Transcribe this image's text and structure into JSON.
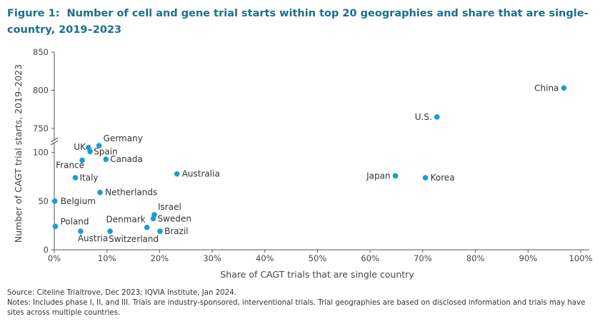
{
  "figure": {
    "label": "Figure 1:",
    "title": "Number of cell and gene trial starts within top 20 geographies and share that are single-country, 2019–2023"
  },
  "colors": {
    "title": "#1d6f8a",
    "point": "#1a9bd7",
    "axis": "#555555",
    "text": "#333333"
  },
  "chart_data": {
    "type": "scatter",
    "title": "Number of cell and gene trial starts within top 20 geographies and share that are single-country, 2019–2023",
    "xlabel": "Share of CAGT trials that are single country",
    "ylabel": "Number of CAGT trial starts, 2019–2023",
    "xlim": [
      0,
      100
    ],
    "x_ticks": [
      "0%",
      "10%",
      "20%",
      "30%",
      "40%",
      "50%",
      "60%",
      "70%",
      "80%",
      "90%",
      "100%"
    ],
    "y_ticks_lower": [
      "0",
      "50",
      "100"
    ],
    "y_ticks_upper": [
      "750",
      "800",
      "850"
    ],
    "y_axis_break": "between 100 and 750",
    "ylim_lower": [
      0,
      110
    ],
    "ylim_upper": [
      735,
      850
    ],
    "grid": false,
    "points": [
      {
        "label": "China",
        "x": 96.8,
        "y": 803
      },
      {
        "label": "U.S.",
        "x": 72.7,
        "y": 765
      },
      {
        "label": "Japan",
        "x": 64.8,
        "y": 76
      },
      {
        "label": "Korea",
        "x": 70.5,
        "y": 74
      },
      {
        "label": "Australia",
        "x": 23.3,
        "y": 78
      },
      {
        "label": "Germany",
        "x": 8.5,
        "y": 107
      },
      {
        "label": "UK",
        "x": 6.5,
        "y": 105
      },
      {
        "label": "Spain",
        "x": 6.8,
        "y": 101
      },
      {
        "label": "France",
        "x": 5.3,
        "y": 92
      },
      {
        "label": "Canada",
        "x": 9.8,
        "y": 93
      },
      {
        "label": "Italy",
        "x": 4.0,
        "y": 74
      },
      {
        "label": "Netherlands",
        "x": 8.7,
        "y": 59
      },
      {
        "label": "Belgium",
        "x": 0.1,
        "y": 50
      },
      {
        "label": "Israel",
        "x": 19.0,
        "y": 36
      },
      {
        "label": "Sweden",
        "x": 18.8,
        "y": 32
      },
      {
        "label": "Denmark",
        "x": 17.6,
        "y": 23
      },
      {
        "label": "Brazil",
        "x": 20.1,
        "y": 19
      },
      {
        "label": "Poland",
        "x": 0.2,
        "y": 24
      },
      {
        "label": "Austria",
        "x": 5.0,
        "y": 19
      },
      {
        "label": "Switzerland",
        "x": 10.6,
        "y": 19
      }
    ]
  },
  "footer": {
    "source": "Source: Citeline Trialtrove, Dec 2023; IQVIA Institute, Jan 2024.",
    "notes": "Notes: Includes phase I, II, and III. Trials are industry-sponsored, interventional trials. Trial geographies are based on disclosed information and trials may have sites across multiple countries."
  }
}
